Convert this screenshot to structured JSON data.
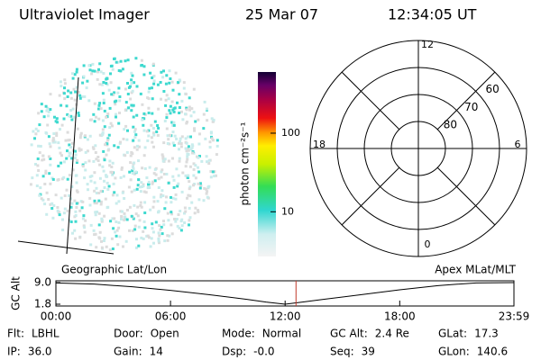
{
  "header": {
    "instrument": "Ultraviolet Imager",
    "date": "25 Mar 07",
    "time": "12:34:05 UT"
  },
  "colorbar": {
    "label": "photon cm⁻²s⁻¹",
    "log": true,
    "lim": [
      2.7,
      600
    ],
    "ticks": [
      10,
      100
    ]
  },
  "polar": {
    "lat_lim": [
      50,
      90
    ],
    "lat_ticks": [
      60,
      70,
      80
    ],
    "mlt_ticks": [
      12,
      18,
      6,
      0
    ]
  },
  "image_labels": {
    "left": "Geographic Lat/Lon",
    "right": "Apex MLat/MLT"
  },
  "timeline": {
    "type": "line",
    "ylabel": "GC Alt",
    "ylim": [
      1.8,
      9.0
    ],
    "yticks": [
      {
        "value": 9.0,
        "label": "9.0"
      },
      1.8
    ],
    "xlim": [
      0,
      23.98
    ],
    "xticks": [
      {
        "value": 0,
        "label": "00:00"
      },
      {
        "value": 6,
        "label": "06:00"
      },
      {
        "value": 12,
        "label": "12:00"
      },
      {
        "value": 18,
        "label": "18:00"
      },
      {
        "value": 23.98,
        "label": "23:59"
      }
    ],
    "x": [
      0,
      2,
      4,
      6,
      8,
      10,
      11,
      12,
      13,
      14,
      16,
      18,
      20,
      22,
      23.98
    ],
    "values": [
      8.9,
      8.5,
      7.6,
      6.4,
      5.0,
      3.4,
      2.5,
      1.8,
      2.6,
      3.4,
      5.0,
      6.6,
      8.0,
      8.9,
      9.0
    ],
    "color": "#000000",
    "marker_x": 12.57,
    "marker_color": "#c0392b"
  },
  "info": {
    "rows": [
      [
        [
          "Flt:",
          "LBHL"
        ],
        [
          "Door:",
          "Open"
        ],
        [
          "Mode:",
          "Normal"
        ],
        [
          "GC Alt:",
          "2.4 Re"
        ],
        [
          "GLat:",
          "17.3"
        ]
      ],
      [
        [
          "IP:",
          "36.0"
        ],
        [
          "Gain:",
          "14"
        ],
        [
          "Dsp:",
          "-0.0"
        ],
        [
          "Seq:",
          "39"
        ],
        [
          "GLon:",
          "140.6"
        ]
      ]
    ]
  }
}
